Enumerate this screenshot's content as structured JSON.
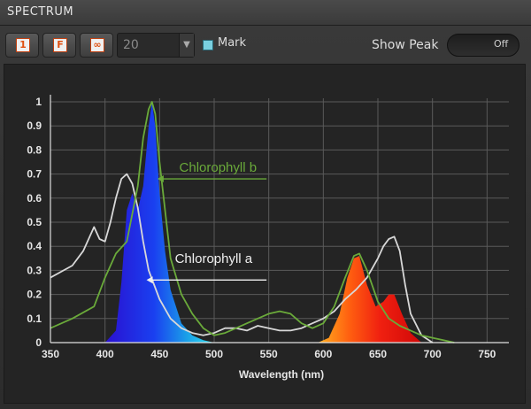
{
  "header": {
    "title": "SPECTRUM"
  },
  "toolbar": {
    "btn1_label": "1",
    "btnF_label": "F",
    "btnLoop_label": "∞",
    "count_value": "20",
    "mark_label": "Mark",
    "show_peak_label": "Show Peak",
    "show_peak_state": "Off"
  },
  "chart_data": {
    "type": "area",
    "xlabel": "Wavelength (nm)",
    "ylabel": "",
    "xlim": [
      350,
      770
    ],
    "ylim": [
      0,
      1
    ],
    "x_ticks": [
      350,
      400,
      450,
      500,
      550,
      600,
      650,
      700,
      750
    ],
    "y_ticks": [
      0,
      0.1,
      0.2,
      0.3,
      0.4,
      0.5,
      0.6,
      0.7,
      0.8,
      0.9,
      1
    ],
    "grid": true,
    "annotations": [
      "Chlorophyll b",
      "Chlorophyll a"
    ],
    "series": [
      {
        "name": "Blue peak",
        "fill": "blue-cyan gradient",
        "x": [
          400,
          410,
          415,
          420,
          425,
          430,
          435,
          440,
          443,
          446,
          450,
          455,
          460,
          470,
          480,
          490,
          500
        ],
        "y": [
          0,
          0.05,
          0.25,
          0.55,
          0.62,
          0.55,
          0.65,
          0.9,
          1.0,
          0.9,
          0.62,
          0.38,
          0.22,
          0.08,
          0.03,
          0.01,
          0
        ]
      },
      {
        "name": "Red peak",
        "fill": "orange-red gradient",
        "x": [
          595,
          605,
          615,
          622,
          628,
          633,
          640,
          648,
          655,
          660,
          665,
          672,
          680,
          690
        ],
        "y": [
          0,
          0.02,
          0.12,
          0.27,
          0.35,
          0.36,
          0.24,
          0.15,
          0.17,
          0.2,
          0.2,
          0.12,
          0.04,
          0
        ]
      },
      {
        "name": "Chlorophyll a",
        "color": "#d8d8d8",
        "x": [
          350,
          370,
          380,
          390,
          395,
          400,
          405,
          410,
          415,
          420,
          425,
          430,
          435,
          440,
          450,
          460,
          470,
          480,
          490,
          500,
          510,
          520,
          530,
          540,
          550,
          560,
          570,
          580,
          590,
          600,
          610,
          620,
          630,
          640,
          650,
          655,
          660,
          665,
          670,
          675,
          680,
          690,
          700
        ],
        "y": [
          0.27,
          0.32,
          0.38,
          0.48,
          0.43,
          0.42,
          0.5,
          0.6,
          0.68,
          0.7,
          0.66,
          0.56,
          0.42,
          0.3,
          0.18,
          0.1,
          0.06,
          0.04,
          0.03,
          0.04,
          0.06,
          0.06,
          0.05,
          0.07,
          0.06,
          0.05,
          0.05,
          0.06,
          0.08,
          0.1,
          0.13,
          0.18,
          0.22,
          0.27,
          0.35,
          0.4,
          0.43,
          0.44,
          0.38,
          0.24,
          0.12,
          0.03,
          0
        ]
      },
      {
        "name": "Chlorophyll b",
        "color": "#6aaa3a",
        "x": [
          350,
          370,
          390,
          400,
          410,
          420,
          430,
          435,
          440,
          443,
          446,
          450,
          455,
          460,
          470,
          480,
          490,
          500,
          510,
          520,
          530,
          540,
          550,
          560,
          570,
          580,
          590,
          600,
          610,
          620,
          628,
          633,
          640,
          650,
          660,
          670,
          680,
          690,
          700,
          710,
          720
        ],
        "y": [
          0.06,
          0.1,
          0.15,
          0.27,
          0.37,
          0.42,
          0.65,
          0.85,
          0.97,
          1.0,
          0.95,
          0.75,
          0.55,
          0.35,
          0.2,
          0.12,
          0.06,
          0.03,
          0.04,
          0.06,
          0.08,
          0.1,
          0.12,
          0.13,
          0.12,
          0.08,
          0.06,
          0.08,
          0.15,
          0.27,
          0.36,
          0.37,
          0.3,
          0.17,
          0.1,
          0.07,
          0.05,
          0.03,
          0.02,
          0.01,
          0
        ]
      }
    ]
  }
}
